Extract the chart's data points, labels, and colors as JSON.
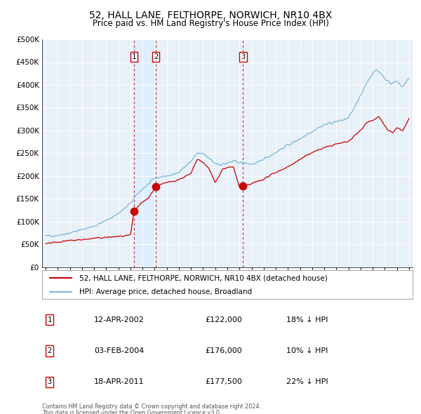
{
  "title": "52, HALL LANE, FELTHORPE, NORWICH, NR10 4BX",
  "subtitle": "Price paid vs. HM Land Registry's House Price Index (HPI)",
  "hpi_label": "HPI: Average price, detached house, Broadland",
  "property_label": "52, HALL LANE, FELTHORPE, NORWICH, NR10 4BX (detached house)",
  "footer1": "Contains HM Land Registry data © Crown copyright and database right 2024.",
  "footer2": "This data is licensed under the Open Government Licence v3.0.",
  "sale_prices": [
    122000,
    176000,
    177500
  ],
  "sale_labels": [
    "1",
    "2",
    "3"
  ],
  "sale_table": [
    {
      "num": "1",
      "date": "12-APR-2002",
      "price": "£122,000",
      "hpi": "18% ↓ HPI"
    },
    {
      "num": "2",
      "date": "03-FEB-2004",
      "price": "£176,000",
      "hpi": "10% ↓ HPI"
    },
    {
      "num": "3",
      "date": "18-APR-2011",
      "price": "£177,500",
      "hpi": "22% ↓ HPI"
    }
  ],
  "hpi_color": "#7ab8d9",
  "sale_color": "#cc0000",
  "vline_color": "#cc0000",
  "shade_color": "#ddeeff",
  "bg_color": "#e8f0f8",
  "ylim": [
    0,
    500000
  ],
  "yticks": [
    0,
    50000,
    100000,
    150000,
    200000,
    250000,
    300000,
    350000,
    400000,
    450000,
    500000
  ],
  "sale_times": [
    2002.292,
    2004.083,
    2011.292
  ],
  "hpi_anchors_t": [
    1995.0,
    1996.0,
    1997.0,
    1998.0,
    1999.0,
    2000.0,
    2001.0,
    2001.5,
    2002.0,
    2002.5,
    2003.0,
    2003.5,
    2004.0,
    2004.5,
    2005.0,
    2005.5,
    2006.0,
    2006.5,
    2007.0,
    2007.5,
    2008.0,
    2008.5,
    2009.0,
    2009.5,
    2010.0,
    2010.5,
    2011.0,
    2011.5,
    2012.0,
    2012.5,
    2013.0,
    2013.5,
    2014.0,
    2014.5,
    2015.0,
    2015.5,
    2016.0,
    2016.5,
    2017.0,
    2017.5,
    2018.0,
    2018.5,
    2019.0,
    2019.5,
    2020.0,
    2020.5,
    2021.0,
    2021.5,
    2022.0,
    2022.3,
    2022.6,
    2023.0,
    2023.5,
    2024.0,
    2024.5,
    2025.0
  ],
  "hpi_anchors_p": [
    68000,
    70000,
    75000,
    82000,
    90000,
    102000,
    118000,
    128000,
    140000,
    158000,
    172000,
    182000,
    195000,
    198000,
    200000,
    202000,
    210000,
    220000,
    232000,
    250000,
    248000,
    238000,
    228000,
    225000,
    228000,
    232000,
    230000,
    228000,
    226000,
    228000,
    238000,
    244000,
    252000,
    260000,
    268000,
    274000,
    282000,
    290000,
    298000,
    306000,
    312000,
    316000,
    320000,
    322000,
    328000,
    350000,
    375000,
    405000,
    425000,
    432000,
    428000,
    415000,
    402000,
    408000,
    396000,
    415000
  ],
  "sale_anchors_t": [
    1995.0,
    1996.0,
    1997.0,
    1998.0,
    1999.0,
    2000.0,
    2001.0,
    2001.5,
    2002.0,
    2002.292,
    2002.8,
    2003.5,
    2004.083,
    2004.5,
    2005.0,
    2006.0,
    2007.0,
    2007.5,
    2008.0,
    2008.5,
    2009.0,
    2009.3,
    2009.6,
    2010.0,
    2010.5,
    2011.0,
    2011.292,
    2011.8,
    2012.0,
    2013.0,
    2014.0,
    2015.0,
    2016.0,
    2017.0,
    2018.0,
    2019.0,
    2020.0,
    2021.0,
    2021.5,
    2022.0,
    2022.5,
    2023.0,
    2023.3,
    2023.7,
    2024.0,
    2024.5,
    2025.0
  ],
  "sale_anchors_p": [
    52000,
    55000,
    58000,
    60000,
    63000,
    65000,
    67000,
    68000,
    70000,
    122000,
    138000,
    152000,
    176000,
    182000,
    185000,
    192000,
    205000,
    236000,
    230000,
    215000,
    185000,
    200000,
    215000,
    218000,
    220000,
    175000,
    177500,
    180000,
    183000,
    193000,
    208000,
    220000,
    236000,
    252000,
    262000,
    270000,
    276000,
    300000,
    318000,
    322000,
    330000,
    310000,
    300000,
    295000,
    305000,
    300000,
    325000
  ]
}
